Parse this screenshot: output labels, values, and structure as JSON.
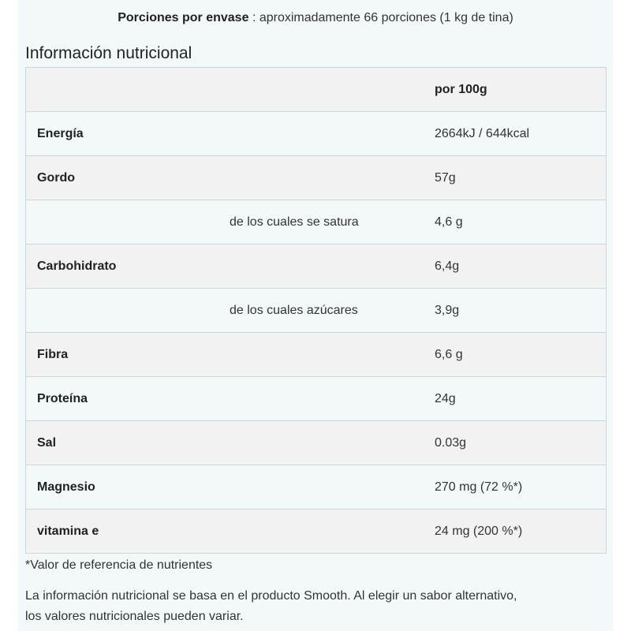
{
  "servings": {
    "label": "Porciones por envase",
    "value": ": aproximadamente 66 porciones (1 kg de tina)"
  },
  "title": "Información nutricional",
  "table": {
    "header": "por 100g",
    "rows": [
      {
        "label": "Energía",
        "value": "2664kJ / 644kcal",
        "sub": false
      },
      {
        "label": "Gordo",
        "value": "57g",
        "sub": false
      },
      {
        "label": "de los cuales se satura",
        "value": "4,6 g",
        "sub": true
      },
      {
        "label": "Carbohidrato",
        "value": "6,4g",
        "sub": false
      },
      {
        "label": "de los cuales azúcares",
        "value": "3,9g",
        "sub": true
      },
      {
        "label": "Fibra",
        "value": "6,6 g",
        "sub": false
      },
      {
        "label": "Proteína",
        "value": "24g",
        "sub": false
      },
      {
        "label": "Sal",
        "value": "0.03g",
        "sub": false
      },
      {
        "label": "Magnesio",
        "value": "270 mg (72 %*)",
        "sub": false
      },
      {
        "label": "vitamina e",
        "value": "24 mg (200 %*)",
        "sub": false
      }
    ]
  },
  "footnote": "*Valor de referencia de nutrientes",
  "disclaimer_line1": "La información nutricional se basa en el producto Smooth. Al elegir un sabor alternativo,",
  "disclaimer_line2": "los valores nutricionales pueden variar."
}
